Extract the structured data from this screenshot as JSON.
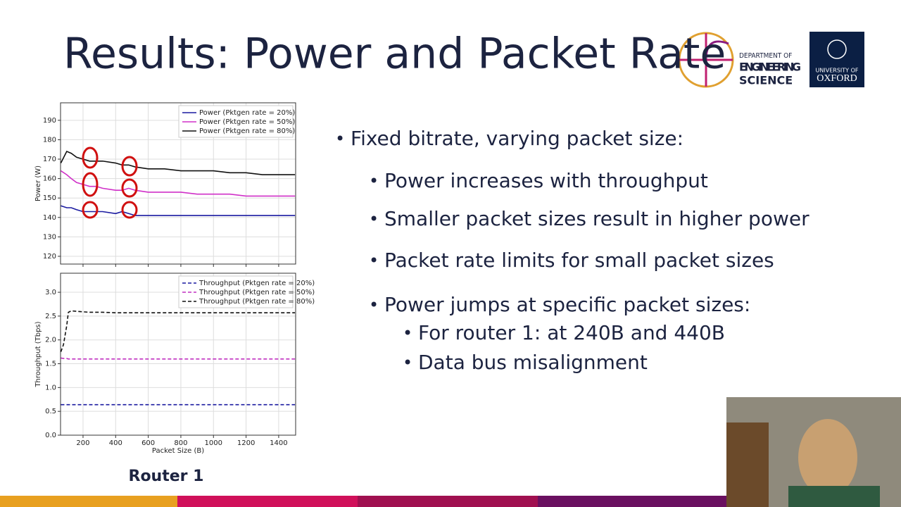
{
  "slide": {
    "title": "Results: Power and Packet Rate",
    "logo_dept": [
      "DEPARTMENT OF",
      "ENGINEERING",
      "SCIENCE"
    ],
    "logo_uni": [
      "UNIVERSITY OF",
      "OXFORD"
    ],
    "caption": "Router 1",
    "bullets": [
      {
        "text": "Fixed bitrate, varying packet size:",
        "level": 1
      },
      {
        "text": "Power increases with throughput",
        "level": 2
      },
      {
        "text": "Smaller packet sizes result in higher power",
        "level": 2
      },
      {
        "text": "Packet rate limits for small packet sizes",
        "level": 2
      },
      {
        "text": "Power jumps at specific packet sizes:",
        "level": 2
      },
      {
        "text": "For router 1: at 240B and 440B",
        "level": 3
      },
      {
        "text": "Data bus misalignment",
        "level": 3
      }
    ]
  },
  "chart_data": [
    {
      "type": "line",
      "ylabel": "Power (W)",
      "linestyle": "solid",
      "show_xtick_labels": false,
      "grid": true,
      "legend": "upper right",
      "x": [
        64,
        100,
        128,
        160,
        200,
        240,
        280,
        320,
        400,
        440,
        480,
        520,
        600,
        700,
        800,
        900,
        1000,
        1100,
        1200,
        1300,
        1400,
        1500
      ],
      "xlim": [
        62,
        1504
      ],
      "xticks": [
        200,
        400,
        600,
        800,
        1000,
        1200,
        1400
      ],
      "ylim": [
        116,
        199
      ],
      "yticks": [
        120,
        130,
        140,
        150,
        160,
        170,
        180,
        190
      ],
      "series": [
        {
          "name": "Power (Pktgen rate = 20%)",
          "color": "#1a1aa0",
          "values": [
            146,
            145,
            145,
            144,
            143,
            143,
            143,
            143,
            142,
            143,
            142,
            141,
            141,
            141,
            141,
            141,
            141,
            141,
            141,
            141,
            141,
            141
          ]
        },
        {
          "name": "Power (Pktgen rate = 50%)",
          "color": "#d030c8",
          "values": [
            164,
            162,
            160,
            158,
            157,
            156,
            156,
            155,
            154,
            154,
            155,
            154,
            153,
            153,
            153,
            152,
            152,
            152,
            151,
            151,
            151,
            151
          ]
        },
        {
          "name": "Power (Pktgen rate = 80%)",
          "color": "#111111",
          "values": [
            168,
            174,
            173,
            171,
            170,
            169,
            169,
            169,
            168,
            167,
            167,
            166,
            165,
            165,
            164,
            164,
            164,
            163,
            163,
            162,
            162,
            162
          ]
        }
      ]
    },
    {
      "type": "line",
      "ylabel": "Throughput (Tbps)",
      "xlabel": "Packet Size (B)",
      "linestyle": "dashed",
      "show_xtick_labels": true,
      "grid": true,
      "legend": "upper right",
      "x": [
        64,
        80,
        100,
        110,
        128,
        160,
        200,
        240,
        280,
        320,
        400,
        480,
        600,
        800,
        1000,
        1200,
        1400,
        1500
      ],
      "xlim": [
        62,
        1504
      ],
      "xticks": [
        200,
        400,
        600,
        800,
        1000,
        1200,
        1400
      ],
      "ylim": [
        0,
        3.4
      ],
      "yticks": [
        {
          "value": 0,
          "label": "0.0"
        },
        0.5,
        {
          "value": 1,
          "label": "1.0"
        },
        1.5,
        {
          "value": 2,
          "label": "2.0"
        },
        2.5,
        {
          "value": 3,
          "label": "3.0"
        }
      ],
      "series": [
        {
          "name": "Throughput (Pktgen rate = 20%)",
          "color": "#1a1aa0",
          "values": [
            0.64,
            0.64,
            0.64,
            0.64,
            0.64,
            0.64,
            0.64,
            0.64,
            0.64,
            0.64,
            0.64,
            0.64,
            0.64,
            0.64,
            0.64,
            0.64,
            0.64,
            0.64
          ]
        },
        {
          "name": "Throughput (Pktgen rate = 50%)",
          "color": "#c030c0",
          "values": [
            1.62,
            1.61,
            1.61,
            1.6,
            1.6,
            1.6,
            1.6,
            1.6,
            1.6,
            1.6,
            1.6,
            1.6,
            1.6,
            1.6,
            1.6,
            1.6,
            1.6,
            1.6
          ]
        },
        {
          "name": "Throughput (Pktgen rate = 80%)",
          "color": "#111111",
          "values": [
            1.75,
            1.9,
            2.3,
            2.58,
            2.61,
            2.6,
            2.59,
            2.58,
            2.58,
            2.58,
            2.57,
            2.57,
            2.57,
            2.57,
            2.57,
            2.57,
            2.57,
            2.57
          ]
        }
      ]
    }
  ]
}
